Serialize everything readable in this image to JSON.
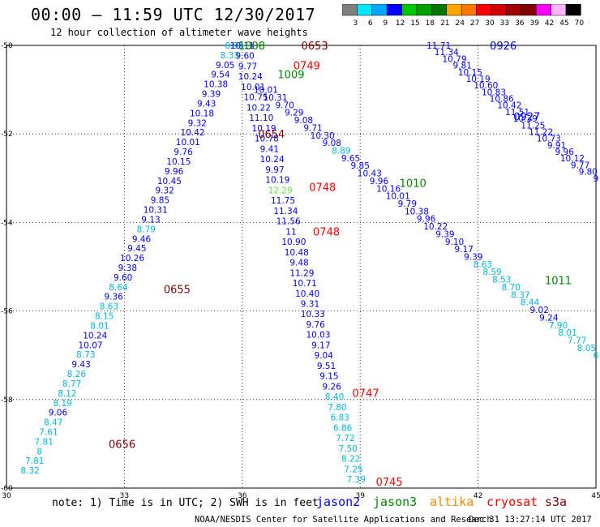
{
  "header": {
    "title": "00:00 – 11:59 UTC 12/30/2017",
    "subtitle": "12 hour collection of altimeter wave heights"
  },
  "colorbar": {
    "colors": [
      "#7f7f7f",
      "#00e5ff",
      "#00a8ff",
      "#0000ff",
      "#00c800",
      "#00a000",
      "#007800",
      "#ffa500",
      "#ff7800",
      "#ff0000",
      "#d20000",
      "#a00000",
      "#800000",
      "#ff00ff",
      "#ffb4ff",
      "#000000"
    ],
    "labels": [
      "3",
      "6",
      "9",
      "12",
      "15",
      "18",
      "21",
      "24",
      "27",
      "30",
      "33",
      "36",
      "39",
      "42",
      "45",
      "70",
      "(ft)"
    ]
  },
  "chart_data": {
    "type": "scatter",
    "title": "12 hour collection of altimeter wave heights",
    "xlabel": "",
    "ylabel": "",
    "xlim": [
      30,
      45
    ],
    "ylim": [
      -60,
      -50
    ],
    "x_ticks": [
      "30",
      "33",
      "36",
      "39",
      "42",
      "45"
    ],
    "y_ticks": [
      "-50",
      "-52",
      "-54",
      "-56",
      "-58",
      "-60"
    ],
    "grid": true,
    "units": "SWH in feet",
    "series": [
      {
        "name": "jason2",
        "color": "#0000ff",
        "track": "ascending",
        "lon_start": 30.6,
        "lat_start": -59.6,
        "lon_end": 35.8,
        "lat_end": -50,
        "values": [
          8.32,
          7.81,
          8.0,
          7.81,
          7.61,
          8.47,
          9.06,
          8.19,
          8.12,
          8.77,
          8.26,
          9.43,
          8.73,
          10.07,
          10.24,
          8.01,
          8.15,
          8.63,
          9.36,
          8.64,
          9.6,
          9.38,
          10.26,
          9.45,
          9.46,
          8.79,
          9.13,
          10.31,
          9.85,
          9.32,
          10.45,
          9.96,
          10.15,
          9.76,
          10.01,
          10.42,
          9.32,
          10.18,
          9.43,
          9.39,
          10.38,
          9.54,
          9.05,
          8.33,
          8.96
        ]
      },
      {
        "name": "jason2",
        "color": "#0000ff",
        "track": "descending",
        "lon_start": 36.0,
        "lat_start": -50,
        "lon_end": 38.9,
        "lat_end": -59.8,
        "values": [
          10.11,
          9.6,
          9.77,
          10.24,
          10.01,
          10.75,
          10.22,
          11.1,
          10.19,
          10.78,
          9.41,
          10.24,
          9.97,
          10.19,
          12.29,
          11.75,
          11.34,
          11.56,
          11.0,
          10.9,
          10.48,
          9.48,
          11.29,
          10.71,
          10.4,
          9.31,
          10.33,
          9.76,
          10.03,
          9.17,
          9.04,
          9.51,
          9.15,
          9.26,
          8.4,
          7.8,
          6.83,
          6.86,
          7.72,
          7.5,
          8.22,
          7.25,
          7.39
        ]
      },
      {
        "name": "jason2",
        "color": "#0000ff",
        "track": "descending",
        "lon_start": 36.6,
        "lat_start": -51.0,
        "lon_end": 45,
        "lat_end": -57.0,
        "values": [
          10.01,
          10.31,
          9.7,
          9.29,
          9.08,
          9.71,
          10.3,
          9.08,
          8.89,
          9.65,
          9.85,
          10.43,
          9.96,
          10.16,
          10.01,
          9.79,
          10.38,
          9.96,
          10.22,
          9.39,
          9.1,
          9.17,
          9.39,
          8.63,
          8.59,
          8.53,
          8.7,
          8.37,
          8.44,
          9.02,
          9.24,
          7.9,
          8.01,
          7.77,
          8.05,
          6
        ]
      },
      {
        "name": "jason2",
        "color": "#0000ff",
        "track": "descending",
        "lon_start": 41.0,
        "lat_start": -50,
        "lon_end": 45,
        "lat_end": -53.0,
        "values": [
          11.71,
          11.34,
          10.79,
          9.81,
          10.15,
          10.19,
          10.6,
          10.83,
          10.86,
          10.42,
          11.51,
          10.39,
          11.25,
          11.22,
          10.73,
          9.91,
          9.96,
          10.12,
          9.77,
          9.8,
          9
        ]
      }
    ],
    "annotations": [
      {
        "text": "1008",
        "color": "#008800",
        "lon": 35.9,
        "lat": -50.0
      },
      {
        "text": "0653",
        "color": "#800000",
        "lon": 37.5,
        "lat": -50.0
      },
      {
        "text": "0749",
        "color": "#ff0000",
        "lon": 37.3,
        "lat": -50.45
      },
      {
        "text": "1009",
        "color": "#008800",
        "lon": 36.9,
        "lat": -50.65
      },
      {
        "text": "0654",
        "color": "#800000",
        "lon": 36.4,
        "lat": -52.0
      },
      {
        "text": "0748",
        "color": "#ff0000",
        "lon": 37.7,
        "lat": -53.2
      },
      {
        "text": "0748",
        "color": "#ff0000",
        "lon": 37.8,
        "lat": -54.2
      },
      {
        "text": "1010",
        "color": "#008800",
        "lon": 40.0,
        "lat": -53.1
      },
      {
        "text": "0655",
        "color": "#800000",
        "lon": 34.0,
        "lat": -55.5
      },
      {
        "text": "0747",
        "color": "#ff0000",
        "lon": 38.8,
        "lat": -57.85
      },
      {
        "text": "0656",
        "color": "#800000",
        "lon": 32.6,
        "lat": -59.0
      },
      {
        "text": "0745",
        "color": "#ff0000",
        "lon": 39.4,
        "lat": -59.85
      },
      {
        "text": "0926",
        "color": "#0000ff",
        "lon": 42.3,
        "lat": -50.0
      },
      {
        "text": "0927",
        "color": "#0000ff",
        "lon": 42.9,
        "lat": -51.6
      },
      {
        "text": "1011",
        "color": "#008800",
        "lon": 43.7,
        "lat": -55.3
      }
    ]
  },
  "footer": {
    "note": "note: 1) Time is in UTC; 2) SWH is in feet",
    "satellites": [
      {
        "name": "jason2",
        "color": "#0000ff"
      },
      {
        "name": "jason3",
        "color": "#008800"
      },
      {
        "name": "altika",
        "color": "#ff8800"
      },
      {
        "name": "cryosat",
        "color": "#ff0000"
      },
      {
        "name": "s3a",
        "color": "#800000"
      }
    ],
    "credit": "NOAA/NESDIS Center for Satellite Applications and Research",
    "timestamp": "Dec 31 13:27:14 UTC 2017"
  }
}
